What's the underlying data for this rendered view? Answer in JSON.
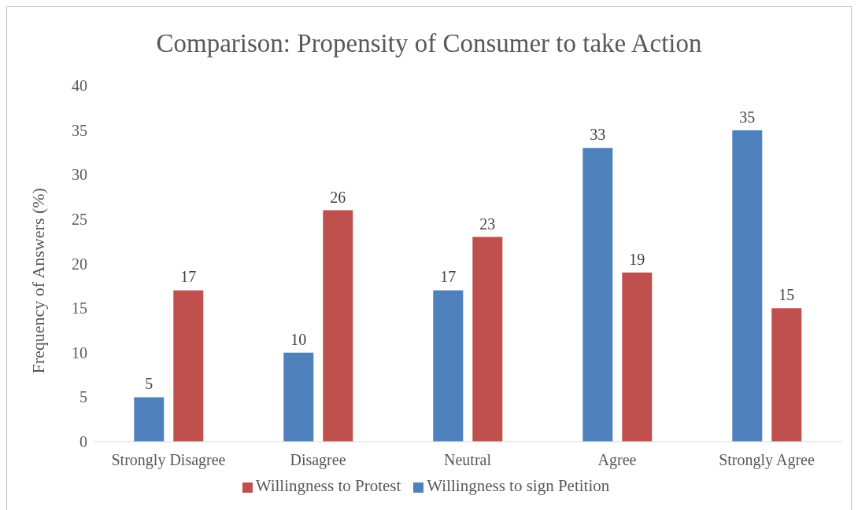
{
  "chart_data": {
    "type": "bar",
    "title": "Comparison: Propensity of Consumer to take Action",
    "ylabel": "Frequency of Answers (%)",
    "categories": [
      "Strongly Disagree",
      "Disagree",
      "Neutral",
      "Agree",
      "Strongly Agree"
    ],
    "series": [
      {
        "name": "Willingness to sign Petition",
        "color": "#4f81bd",
        "values": [
          5,
          10,
          17,
          33,
          35
        ]
      },
      {
        "name": "Willingness to Protest",
        "color": "#c0504d",
        "values": [
          17,
          26,
          23,
          19,
          15
        ]
      }
    ],
    "ylim": [
      0,
      40
    ],
    "yticks": [
      0,
      5,
      10,
      15,
      20,
      25,
      30,
      35,
      40
    ],
    "grid": false,
    "legend": "bottom",
    "data_labels": true
  }
}
